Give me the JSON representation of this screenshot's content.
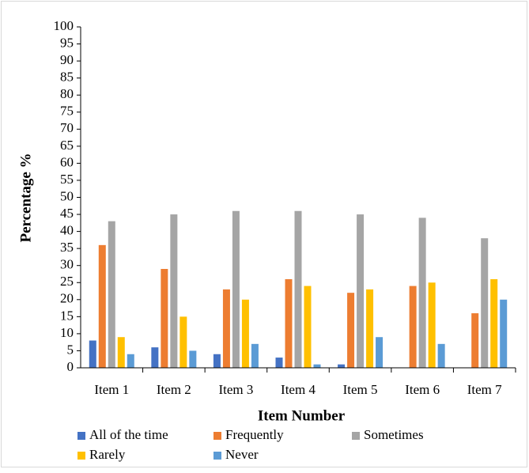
{
  "chart_data": {
    "type": "bar",
    "x_label": "Item Number",
    "y_label": "Percentage %",
    "categories": [
      "Item 1",
      "Item 2",
      "Item 3",
      "Item 4",
      "Item 5",
      "Item 6",
      "Item 7"
    ],
    "series": [
      {
        "name": "All of the time",
        "color": "#4472c4",
        "values": [
          8,
          6,
          4,
          3,
          1,
          0,
          0
        ]
      },
      {
        "name": "Frequently",
        "color": "#ed7d31",
        "values": [
          36,
          29,
          23,
          26,
          22,
          24,
          16
        ]
      },
      {
        "name": "Sometimes",
        "color": "#a5a5a5",
        "values": [
          43,
          45,
          46,
          46,
          45,
          44,
          38
        ]
      },
      {
        "name": "Rarely",
        "color": "#ffc000",
        "values": [
          9,
          15,
          20,
          24,
          23,
          25,
          26
        ]
      },
      {
        "name": "Never",
        "color": "#5b9bd5",
        "values": [
          4,
          5,
          7,
          1,
          9,
          7,
          20
        ]
      }
    ],
    "ylim": [
      0,
      100
    ],
    "yticks": [
      0,
      5,
      10,
      15,
      20,
      25,
      30,
      35,
      40,
      45,
      50,
      55,
      60,
      65,
      70,
      75,
      80,
      85,
      90,
      95,
      100
    ],
    "grid": false,
    "legend": "bottom"
  }
}
